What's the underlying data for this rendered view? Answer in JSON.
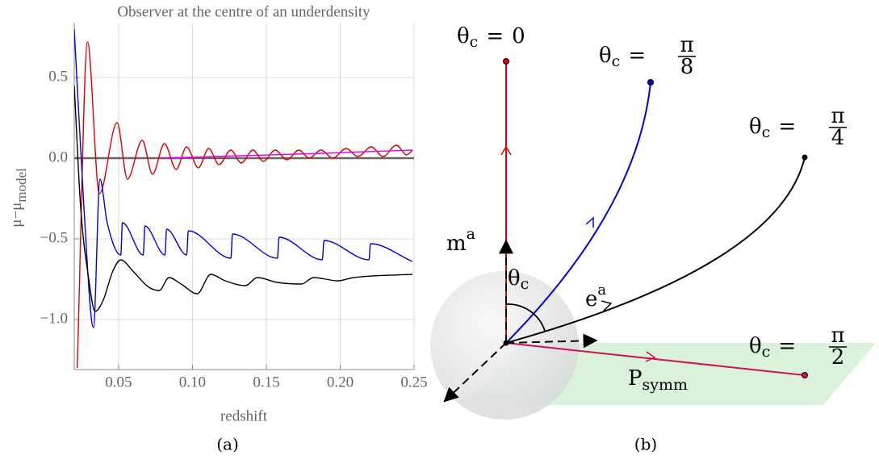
{
  "chart_data": {
    "type": "line",
    "title": "Observer at the centre of an underdensity",
    "x_label": "redshift",
    "y_label": "μ−μ",
    "y_label_sub": "model",
    "xlim": [
      0.02,
      0.25
    ],
    "ylim": [
      -1.31,
      0.84
    ],
    "xticks": [
      0.05,
      {
        "value": 0.1,
        "label": "0.10"
      },
      0.15,
      {
        "value": 0.2,
        "label": "0.20"
      },
      0.25
    ],
    "yticks": [
      {
        "value": -1,
        "label": "−1.0"
      },
      {
        "value": -0.5,
        "label": "−0.5"
      },
      {
        "value": 0,
        "label": "0.0"
      },
      0.5
    ],
    "grid": true,
    "reference_line": 0,
    "series": [
      {
        "color": "#e00000",
        "x": [
          0.022,
          0.029,
          0.037,
          0.049,
          0.056,
          0.066,
          0.073,
          0.081,
          0.089,
          0.096,
          0.104,
          0.111,
          0.118,
          0.126,
          0.133,
          0.141,
          0.148,
          0.156,
          0.164,
          0.172,
          0.179,
          0.187,
          0.195,
          0.204,
          0.212,
          0.221,
          0.229,
          0.238,
          0.245,
          0.249
        ],
        "values": [
          -1.3,
          0.72,
          -0.22,
          0.22,
          -0.13,
          0.11,
          -0.1,
          0.09,
          -0.07,
          0.07,
          -0.06,
          0.06,
          -0.04,
          0.05,
          -0.03,
          0.05,
          -0.02,
          0.05,
          -0.01,
          0.05,
          0.0,
          0.05,
          0.0,
          0.06,
          0.01,
          0.07,
          0.01,
          0.08,
          0.02,
          0.05
        ]
      },
      {
        "color": "#0000e0",
        "x": [
          0.02,
          0.0265,
          0.033,
          0.0374,
          0.0423,
          0.0515,
          0.0526,
          0.0667,
          0.0678,
          0.0814,
          0.0825,
          0.0961,
          0.0972,
          0.126,
          0.1271,
          0.1575,
          0.1586,
          0.1879,
          0.189,
          0.2195,
          0.2205,
          0.2488
        ],
        "values": [
          0.8,
          -0.3,
          -1.05,
          -0.13,
          -0.4,
          -0.6,
          -0.4,
          -0.6,
          -0.42,
          -0.6,
          -0.44,
          -0.6,
          -0.45,
          -0.62,
          -0.47,
          -0.62,
          -0.49,
          -0.63,
          -0.51,
          -0.63,
          -0.53,
          -0.64
        ]
      },
      {
        "color": "#000000",
        "x": [
          0.02,
          0.0243,
          0.0298,
          0.0341,
          0.0396,
          0.0461,
          0.0515,
          0.0597,
          0.0705,
          0.0776,
          0.0841,
          0.0923,
          0.1032,
          0.1124,
          0.1222,
          0.1358,
          0.1439,
          0.1575,
          0.1738,
          0.182,
          0.1983,
          0.2091,
          0.2488
        ],
        "values": [
          0.45,
          -0.3,
          -0.75,
          -0.95,
          -0.88,
          -0.7,
          -0.63,
          -0.7,
          -0.8,
          -0.82,
          -0.74,
          -0.78,
          -0.84,
          -0.72,
          -0.76,
          -0.79,
          -0.74,
          -0.77,
          -0.78,
          -0.74,
          -0.76,
          -0.74,
          -0.72
        ]
      },
      {
        "color": "#e000e0",
        "x": [
          0.0787,
          0.133,
          0.1874,
          0.2488
        ],
        "values": [
          0.0,
          0.015,
          0.03,
          0.05
        ]
      }
    ]
  },
  "diagram": {
    "labels": [
      {
        "symbol": "θ",
        "sub": "c",
        "relation": "=",
        "value": "0"
      },
      {
        "symbol": "θ",
        "sub": "c",
        "relation": "=",
        "numerator": "π",
        "denominator": "8"
      },
      {
        "symbol": "θ",
        "sub": "c",
        "relation": "=",
        "numerator": "π",
        "denominator": "4"
      },
      {
        "symbol": "θ",
        "sub": "c",
        "relation": "=",
        "numerator": "π",
        "denominator": "2"
      }
    ],
    "vectors": [
      {
        "symbol": "m",
        "sup": "a"
      },
      {
        "symbol": "e",
        "sup": "a"
      }
    ],
    "angle": {
      "symbol": "θ",
      "sub": "c"
    },
    "plane": {
      "symbol": "P",
      "sub": "symm"
    }
  },
  "captions": [
    "(a)",
    "(b)"
  ]
}
